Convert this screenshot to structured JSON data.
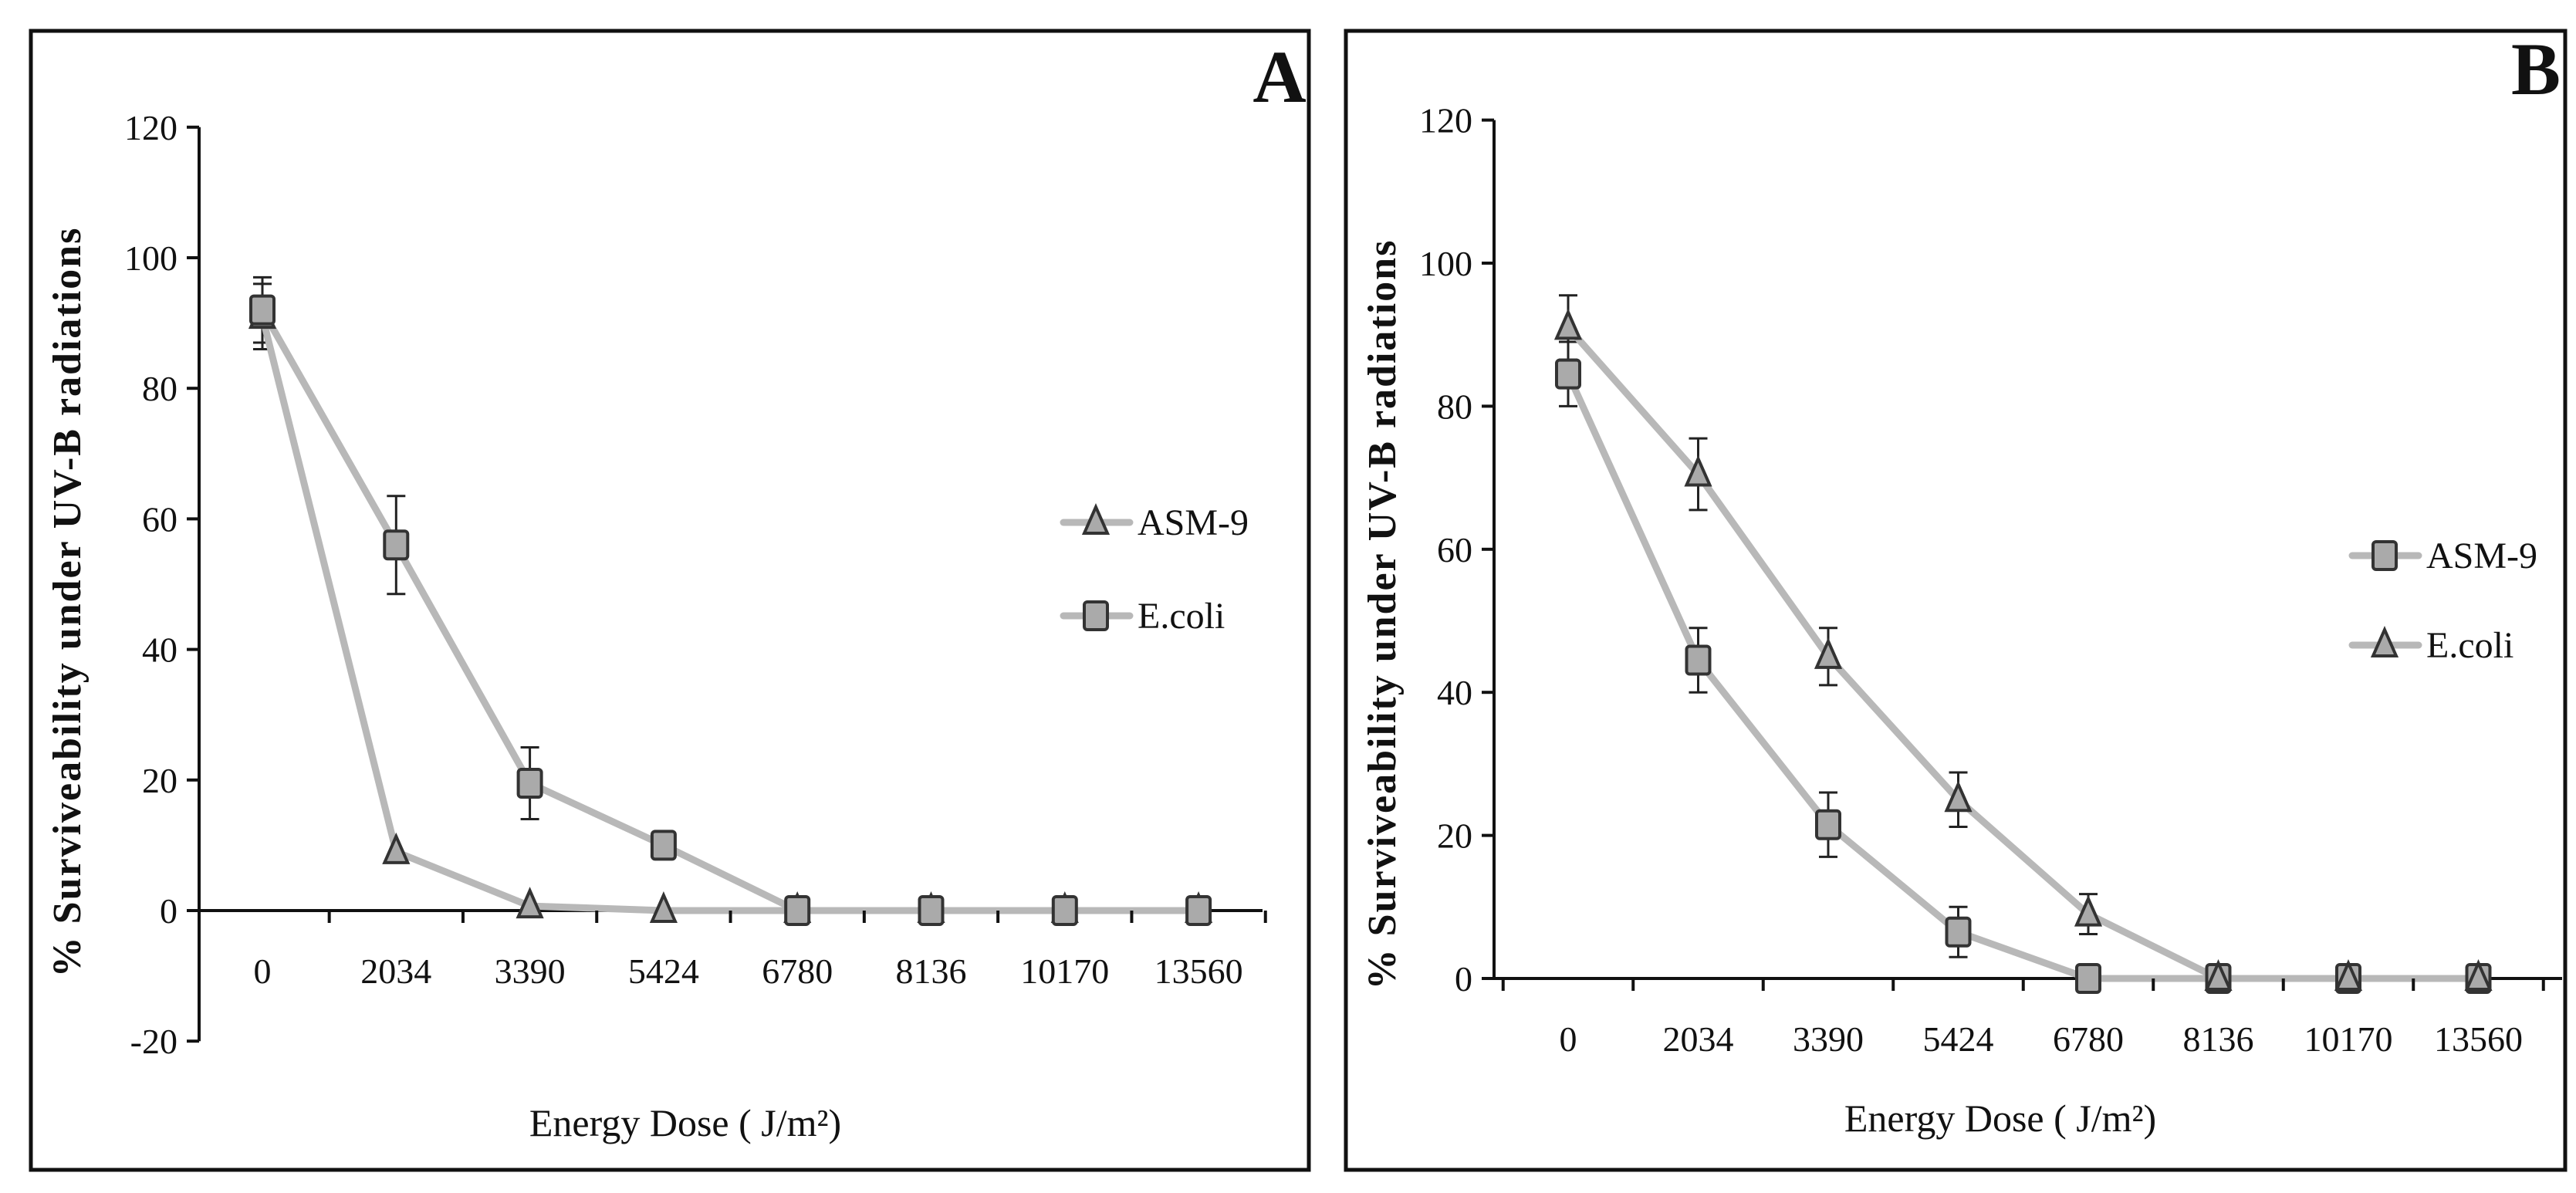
{
  "chart_data": [
    {
      "panel": "A",
      "type": "line",
      "xlabel": "Energy Dose ( J/m²)",
      "ylabel": "%  Surviveability under UV-B radiations",
      "categories": [
        "0",
        "2034",
        "3390",
        "5424",
        "6780",
        "8136",
        "10170",
        "13560"
      ],
      "y_ticks": [
        "-20",
        "0",
        "20",
        "40",
        "60",
        "80",
        "100",
        "120"
      ],
      "ylim": [
        -20,
        120
      ],
      "legend_position": "right",
      "series": [
        {
          "name": "ASM-9",
          "marker": "triangle",
          "values": [
            91,
            9,
            0.7,
            0,
            0,
            0,
            0,
            0
          ],
          "errors": [
            5,
            0,
            0,
            0,
            0,
            0,
            0,
            0
          ]
        },
        {
          "name": "E.coli",
          "marker": "square",
          "values": [
            92,
            56,
            19.5,
            10,
            0,
            0,
            0,
            0
          ],
          "errors": [
            5,
            7.5,
            5.5,
            0,
            0,
            0,
            0,
            0
          ]
        }
      ]
    },
    {
      "panel": "B",
      "type": "line",
      "xlabel": "Energy Dose ( J/m²)",
      "ylabel": "%  Surviveability under UV-B radiations",
      "categories": [
        "0",
        "2034",
        "3390",
        "5424",
        "6780",
        "8136",
        "10170",
        "13560"
      ],
      "y_ticks": [
        "0",
        "20",
        "40",
        "60",
        "80",
        "100",
        "120"
      ],
      "ylim": [
        0,
        120
      ],
      "legend_position": "right",
      "series": [
        {
          "name": "ASM-9",
          "marker": "square",
          "values": [
            84.5,
            44.5,
            21.5,
            6.5,
            0,
            0,
            0,
            0
          ],
          "errors": [
            4.5,
            4.5,
            4.5,
            3.5,
            0,
            0,
            0,
            0
          ]
        },
        {
          "name": "E.coli",
          "marker": "triangle",
          "values": [
            91,
            70.5,
            45,
            25,
            9,
            0,
            0,
            0
          ],
          "errors": [
            4.5,
            5,
            4,
            3.8,
            2.8,
            0,
            0,
            0
          ]
        }
      ]
    }
  ]
}
